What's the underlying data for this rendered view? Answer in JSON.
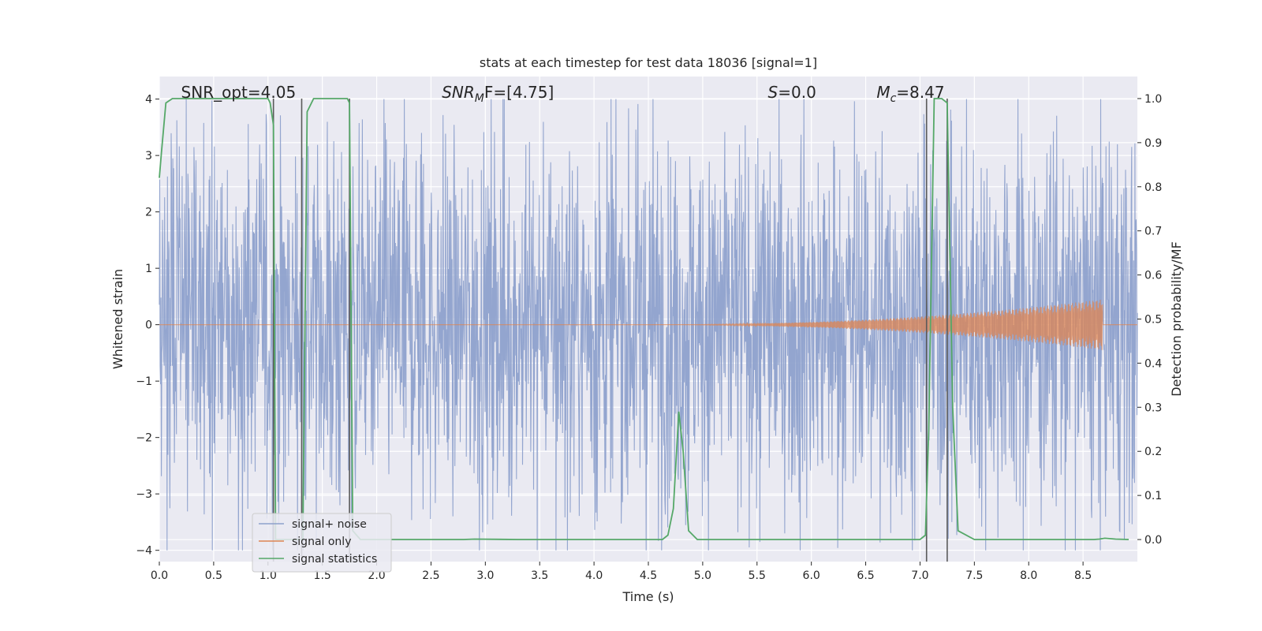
{
  "chart_data": {
    "type": "line",
    "title": "stats at each timestep for test data 18036 [signal=1]",
    "xlabel": "Time (s)",
    "ylabel": "Whitened strain",
    "ylabel_right": "Detection probability/MF",
    "xlim": [
      0.0,
      9.0
    ],
    "ylim": [
      -4.2,
      4.4
    ],
    "ylim_right": [
      -0.05,
      1.05
    ],
    "x_ticks": [
      0.0,
      0.5,
      1.0,
      1.5,
      2.0,
      2.5,
      3.0,
      3.5,
      4.0,
      4.5,
      5.0,
      5.5,
      6.0,
      6.5,
      7.0,
      7.5,
      8.0,
      8.5
    ],
    "x_tick_labels": [
      "0.0",
      "0.5",
      "1.0",
      "1.5",
      "2.0",
      "2.5",
      "3.0",
      "3.5",
      "4.0",
      "4.5",
      "5.0",
      "5.5",
      "6.0",
      "6.5",
      "7.0",
      "7.5",
      "8.0",
      "8.5"
    ],
    "y_ticks": [
      -4,
      -3,
      -2,
      -1,
      0,
      1,
      2,
      3,
      4
    ],
    "y_tick_labels": [
      "−4",
      "−3",
      "−2",
      "−1",
      "0",
      "1",
      "2",
      "3",
      "4"
    ],
    "y_ticks_right": [
      0.0,
      0.1,
      0.2,
      0.3,
      0.4,
      0.5,
      0.6,
      0.7,
      0.8,
      0.9,
      1.0
    ],
    "y_tick_labels_right": [
      "0.0",
      "0.1",
      "0.2",
      "0.3",
      "0.4",
      "0.5",
      "0.6",
      "0.7",
      "0.8",
      "0.9",
      "1.0"
    ],
    "grid": true,
    "legend_placement": "lower-left",
    "series": [
      {
        "name": "signal+ noise",
        "color": "#8ea1cc",
        "kind": "noise",
        "duration": 9.0,
        "samples": 2400,
        "typical_amplitude": 1.7,
        "peak_amplitude": 4.0
      },
      {
        "name": "signal only",
        "color": "#dd8452",
        "kind": "chirp",
        "start": 4.5,
        "end": 8.68,
        "peak_amplitude": 0.45
      },
      {
        "name": "signal statistics",
        "color": "#55a868",
        "axis": "right",
        "x": [
          0.0,
          0.02,
          0.06,
          0.12,
          0.2,
          0.5,
          1.0,
          1.02,
          1.05,
          1.07,
          1.12,
          1.3,
          1.32,
          1.36,
          1.42,
          1.6,
          1.73,
          1.75,
          1.78,
          1.85,
          2.5,
          2.8,
          2.9,
          3.3,
          4.5,
          4.63,
          4.68,
          4.73,
          4.78,
          4.82,
          4.87,
          4.95,
          6.5,
          7.0,
          7.05,
          7.08,
          7.13,
          7.2,
          7.25,
          7.3,
          7.35,
          7.5,
          8.0,
          8.5,
          8.6,
          8.65,
          8.7,
          8.8,
          8.92
        ],
        "values": [
          0.82,
          0.88,
          0.99,
          1.0,
          1.0,
          1.0,
          1.0,
          0.99,
          0.94,
          0.0,
          0.0,
          0.0,
          0.0,
          0.97,
          1.0,
          1.0,
          1.0,
          0.99,
          0.02,
          0.0,
          0.0,
          0.0,
          0.001,
          0.0,
          0.0,
          0.0,
          0.01,
          0.07,
          0.29,
          0.2,
          0.02,
          0.0,
          0.0,
          0.0,
          0.01,
          0.25,
          1.0,
          1.0,
          0.99,
          0.3,
          0.02,
          0.0,
          0.0,
          0.0,
          0.0,
          0.001,
          0.003,
          0.001,
          0.0
        ]
      }
    ],
    "vertical_lines": {
      "color": "#5a5a5a",
      "x": [
        1.05,
        1.31,
        1.75,
        7.06,
        7.25
      ],
      "ymin": -0.05,
      "ymax": 1.0
    },
    "annotations": [
      {
        "id": "snr-opt",
        "x": 0.2,
        "text": "SNR_opt=4.05"
      },
      {
        "id": "snr-mf",
        "x": 2.6,
        "base": "SNR",
        "sub": "M",
        "rest": "F=[4.75]"
      },
      {
        "id": "s-val",
        "x": 5.6,
        "base": "S",
        "sub": "",
        "rest": "=0.0"
      },
      {
        "id": "mc-val",
        "x": 6.6,
        "base": "M",
        "sub": "c",
        "rest": "=8.47"
      }
    ]
  }
}
